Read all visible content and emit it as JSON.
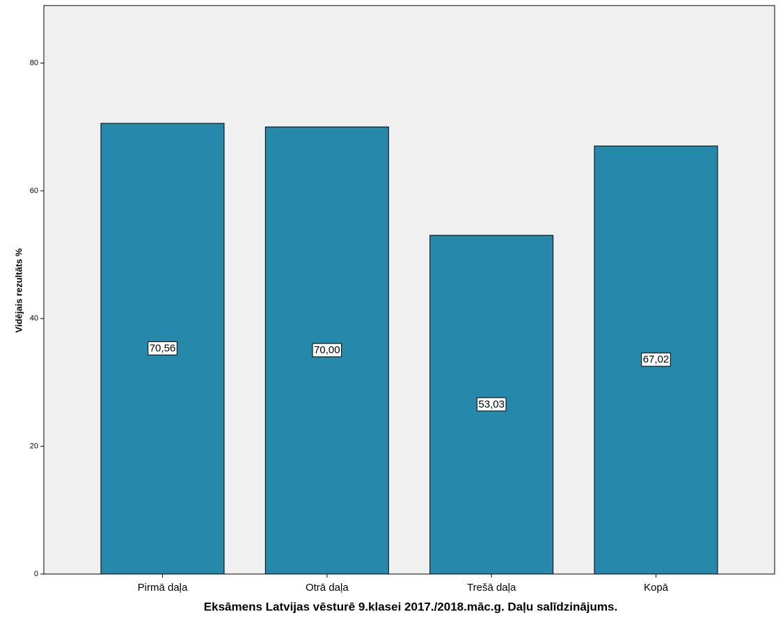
{
  "chart_data": {
    "type": "bar",
    "title": "Eksāmens Latvijas vēsturē 9.klasei 2017./2018.māc.g. Daļu salīdzinājums.",
    "y_label": "Vidējais rezultāts %",
    "categories": [
      "Pirmā daļa",
      "Otrā daļa",
      "Trešā daļa",
      "Kopā"
    ],
    "values": [
      70.56,
      70.0,
      53.03,
      67.02
    ],
    "value_labels": [
      "70,56",
      "70,00",
      "53,03",
      "67,02"
    ],
    "color": "#2689ab",
    "ylim": [
      0,
      89
    ],
    "yticks": [
      0,
      20,
      40,
      60,
      80
    ],
    "grid": false
  }
}
